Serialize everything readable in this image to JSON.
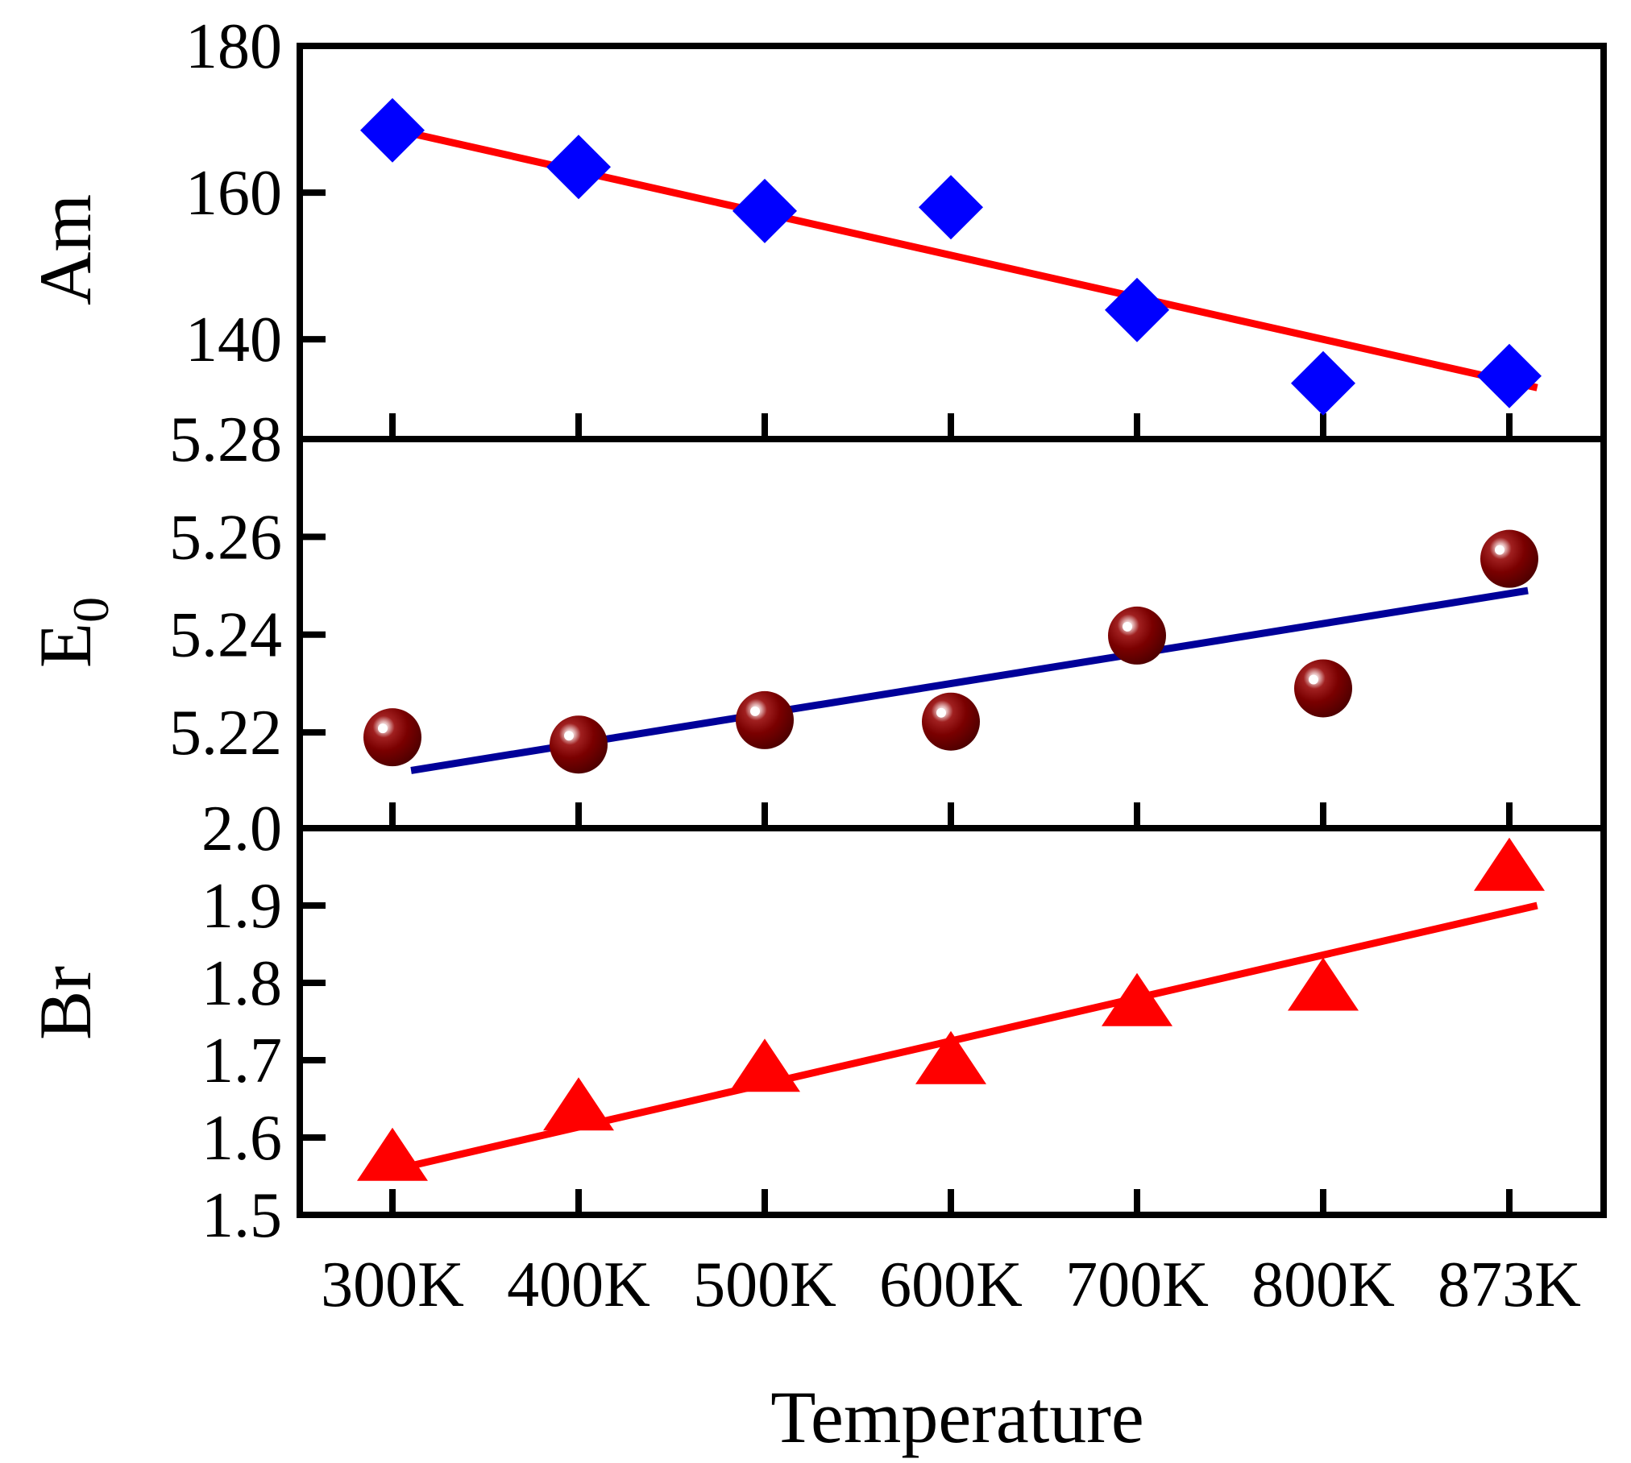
{
  "chart_data": [
    {
      "type": "scatter",
      "panel": "top",
      "ylabel": "Am",
      "ylim": [
        126.4,
        180
      ],
      "yticks": [
        140,
        160,
        180
      ],
      "categories": [
        "300K",
        "400K",
        "500K",
        "600K",
        "700K",
        "800K",
        "873K"
      ],
      "x": [
        1,
        2,
        3,
        4,
        5,
        6,
        7
      ],
      "values": [
        168.5,
        163.5,
        157.5,
        158,
        144,
        134,
        135
      ],
      "marker": "diamond",
      "marker_color": "#0000ff",
      "fit": {
        "x": [
          1.08,
          7.15
        ],
        "y": [
          168.2,
          133.4
        ],
        "color": "#ff0000"
      }
    },
    {
      "type": "scatter",
      "panel": "middle",
      "ylabel": "E",
      "ylabel_sub": "0",
      "ylim": [
        5.2004,
        5.28
      ],
      "yticks": [
        5.22,
        5.24,
        5.26,
        5.28
      ],
      "categories": [
        "300K",
        "400K",
        "500K",
        "600K",
        "700K",
        "800K",
        "873K"
      ],
      "x": [
        1,
        2,
        3,
        4,
        5,
        6,
        7
      ],
      "values": [
        5.219,
        5.2175,
        5.2225,
        5.2222,
        5.2398,
        5.229,
        5.2555
      ],
      "marker": "sphere",
      "marker_color": "#7a0000",
      "fit": {
        "x": [
          1.1,
          7.1
        ],
        "y": [
          5.2122,
          5.249
        ],
        "color": "#000099"
      }
    },
    {
      "type": "scatter",
      "panel": "bottom",
      "ylabel": "Br",
      "xlabel": "Temperature",
      "ylim": [
        1.5,
        2.0
      ],
      "yticks": [
        1.5,
        1.6,
        1.7,
        1.8,
        1.9,
        2.0
      ],
      "ytick_labels": [
        "1.5",
        "1.6",
        "1.7",
        "1.8",
        "1.9",
        "2.0"
      ],
      "categories": [
        "300K",
        "400K",
        "500K",
        "600K",
        "700K",
        "800K",
        "873K"
      ],
      "x": [
        1,
        2,
        3,
        4,
        5,
        6,
        7
      ],
      "values": [
        1.575,
        1.64,
        1.69,
        1.7,
        1.775,
        1.795,
        1.95
      ],
      "marker": "triangle",
      "marker_color": "#ff0000",
      "fit": {
        "x": [
          1.0,
          7.15
        ],
        "y": [
          1.558,
          1.9
        ],
        "color": "#ff0000"
      }
    }
  ]
}
